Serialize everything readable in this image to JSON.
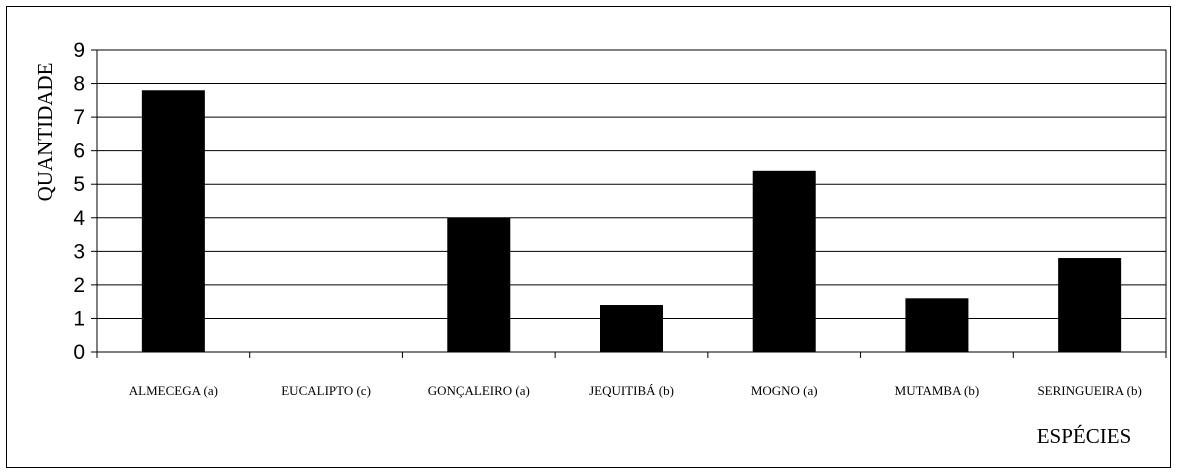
{
  "chart_data": {
    "type": "bar",
    "title": "",
    "xlabel": "ESPÉCIES",
    "ylabel": "QUANTIDADE",
    "categories": [
      "ALMECEGA (a)",
      "EUCALIPTO (c)",
      "GONÇALEIRO (a)",
      "JEQUITIBÁ (b)",
      "MOGNO (a)",
      "MUTAMBA (b)",
      "SERINGUEIRA (b)"
    ],
    "values": [
      7.8,
      0,
      4.0,
      1.4,
      5.4,
      1.6,
      2.8
    ],
    "ylim": [
      0,
      9
    ],
    "yticks": [
      "0",
      "1",
      "2",
      "3",
      "4",
      "5",
      "6",
      "7",
      "8",
      "9"
    ],
    "grid": true,
    "legend": "none",
    "bar_color": "#000000"
  }
}
